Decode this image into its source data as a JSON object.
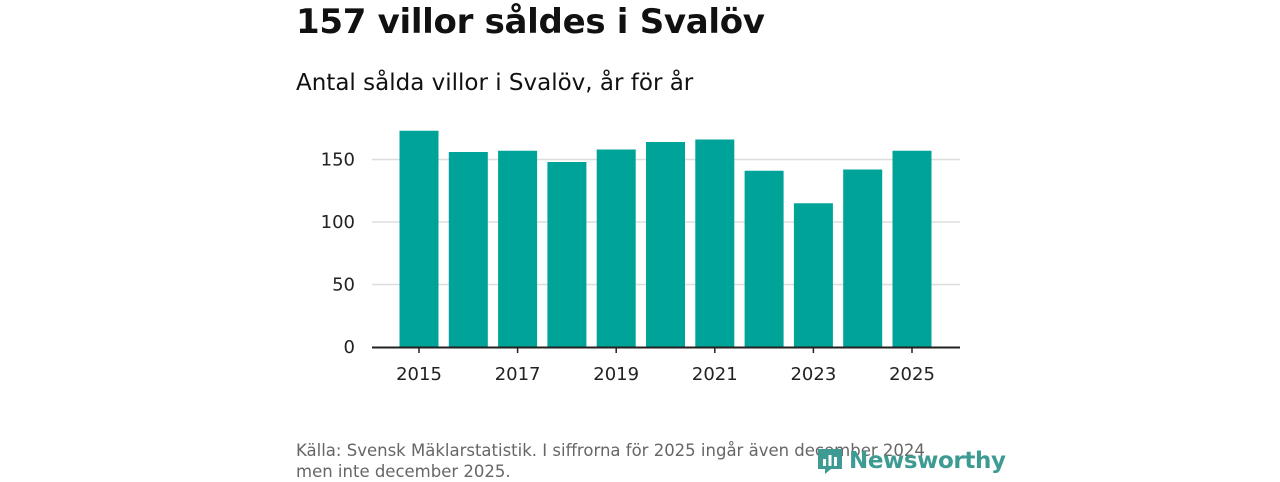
{
  "headline": "157 villor såldes i Svalöv",
  "subtitle": "Antal sålda villor i Svalöv, år för år",
  "source": "Källa: Svensk Mäklarstatistik. I siffrorna för 2025 ingår även december 2024 men inte december 2025.",
  "logo": {
    "text": "Newsworthy",
    "icon": "newsworthy-logo-icon",
    "color": "#3d9b94"
  },
  "chart_data": {
    "type": "bar",
    "categories": [
      "2015",
      "2016",
      "2017",
      "2018",
      "2019",
      "2020",
      "2021",
      "2022",
      "2023",
      "2024",
      "2025"
    ],
    "values": [
      173,
      156,
      157,
      148,
      158,
      164,
      166,
      141,
      115,
      142,
      157
    ],
    "x_tick_labels": [
      "2015",
      "2017",
      "2019",
      "2021",
      "2023",
      "2025"
    ],
    "y_ticks": [
      0,
      50,
      100,
      150
    ],
    "ylim": [
      0,
      180
    ],
    "grid": true,
    "bar_color": "#00a397",
    "grid_color": "#dddddd",
    "axis_color": "#222222"
  }
}
